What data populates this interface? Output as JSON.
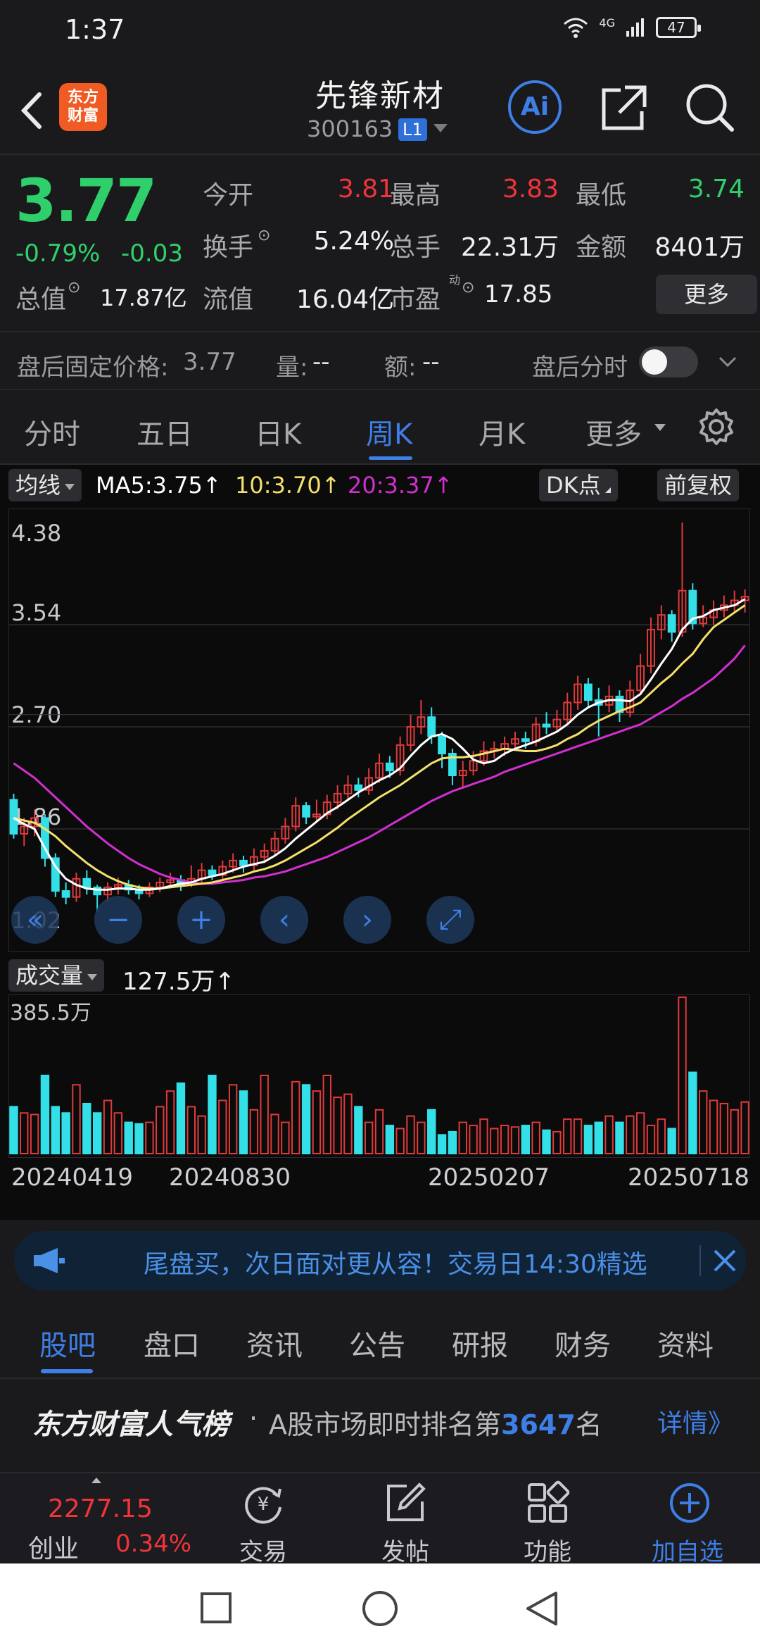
{
  "status_bar": {
    "time": "1:37",
    "network": "4G",
    "battery": "47"
  },
  "header": {
    "logo_text_line1": "东方",
    "logo_text_line2": "财富",
    "stock_name": "先锋新材",
    "stock_code": "300163",
    "level_badge": "L1"
  },
  "quote": {
    "price": "3.77",
    "change_pct": "-0.79%",
    "change_abs": "-0.03",
    "rows": [
      {
        "label": "今开",
        "value": "3.81",
        "color": "#f0343a"
      },
      {
        "label": "最高",
        "value": "3.83",
        "color": "#f0343a"
      },
      {
        "label": "最低",
        "value": "3.74",
        "color": "#2fd06b"
      },
      {
        "label": "换手",
        "value": "5.24%",
        "color": "#f0f0f0"
      },
      {
        "label": "总手",
        "value": "22.31万",
        "color": "#f0f0f0"
      },
      {
        "label": "金额",
        "value": "8401万",
        "color": "#f0f0f0"
      },
      {
        "label": "总值",
        "value": "17.87亿",
        "color": "#f0f0f0"
      },
      {
        "label": "流值",
        "value": "16.04亿",
        "color": "#f0f0f0"
      },
      {
        "label": "市盈",
        "value": "17.85",
        "color": "#f0f0f0"
      }
    ],
    "pe_superscript": "动",
    "more_label": "更多"
  },
  "after_hours": {
    "fixed_price_label": "盘后固定价格:",
    "fixed_price_value": "3.77",
    "volume_label": "量:",
    "volume_value": "--",
    "amount_label": "额:",
    "amount_value": "--",
    "toggle_label": "盘后分时"
  },
  "period_tabs": [
    "分时",
    "五日",
    "日K",
    "周K",
    "月K",
    "更多"
  ],
  "active_period": "周K",
  "ma_bar": {
    "btn_label": "均线",
    "ma5": "MA5:3.75↑",
    "ma10": "10:3.70↑",
    "ma20": "20:3.37↑",
    "dk_label": "DK点",
    "fq_label": "前复权",
    "ma5_color": "#ffffff",
    "ma10_color": "#f4e06a",
    "ma20_color": "#d22fd0"
  },
  "chart_data": {
    "type": "candlestick",
    "y_ticks": [
      "4.38",
      "3.54",
      "2.70",
      "1.86",
      "1.02"
    ],
    "ylim": [
      1.02,
      4.38
    ],
    "up_color": "#e03a3a",
    "down_color": "#33e0e8",
    "candles": [
      [
        2.1,
        1.82,
        2.15,
        1.78
      ],
      [
        1.82,
        1.88,
        1.95,
        1.72
      ],
      [
        1.88,
        1.95,
        2.02,
        1.8
      ],
      [
        1.95,
        1.62,
        1.98,
        1.55
      ],
      [
        1.62,
        1.35,
        1.66,
        1.3
      ],
      [
        1.35,
        1.3,
        1.42,
        1.24
      ],
      [
        1.3,
        1.45,
        1.5,
        1.26
      ],
      [
        1.45,
        1.38,
        1.52,
        1.32
      ],
      [
        1.38,
        1.32,
        1.4,
        1.18
      ],
      [
        1.32,
        1.38,
        1.42,
        1.26
      ],
      [
        1.38,
        1.4,
        1.46,
        1.32
      ],
      [
        1.4,
        1.36,
        1.44,
        1.32
      ],
      [
        1.36,
        1.33,
        1.4,
        1.28
      ],
      [
        1.33,
        1.38,
        1.42,
        1.3
      ],
      [
        1.38,
        1.42,
        1.46,
        1.34
      ],
      [
        1.42,
        1.44,
        1.5,
        1.38
      ],
      [
        1.44,
        1.4,
        1.48,
        1.35
      ],
      [
        1.4,
        1.45,
        1.56,
        1.38
      ],
      [
        1.45,
        1.52,
        1.58,
        1.42
      ],
      [
        1.52,
        1.48,
        1.56,
        1.44
      ],
      [
        1.48,
        1.55,
        1.6,
        1.44
      ],
      [
        1.55,
        1.6,
        1.66,
        1.5
      ],
      [
        1.6,
        1.56,
        1.64,
        1.5
      ],
      [
        1.56,
        1.63,
        1.7,
        1.52
      ],
      [
        1.63,
        1.68,
        1.74,
        1.58
      ],
      [
        1.68,
        1.78,
        1.84,
        1.64
      ],
      [
        1.78,
        1.88,
        1.95,
        1.74
      ],
      [
        1.88,
        2.05,
        2.12,
        1.84
      ],
      [
        2.05,
        1.96,
        2.08,
        1.9
      ],
      [
        1.96,
        1.98,
        2.1,
        1.92
      ],
      [
        1.98,
        2.08,
        2.14,
        1.94
      ],
      [
        2.08,
        2.15,
        2.22,
        2.02
      ],
      [
        2.15,
        2.22,
        2.3,
        2.1
      ],
      [
        2.22,
        2.18,
        2.28,
        2.12
      ],
      [
        2.18,
        2.28,
        2.36,
        2.14
      ],
      [
        2.28,
        2.4,
        2.48,
        2.24
      ],
      [
        2.4,
        2.34,
        2.46,
        2.28
      ],
      [
        2.34,
        2.55,
        2.62,
        2.3
      ],
      [
        2.55,
        2.7,
        2.8,
        2.5
      ],
      [
        2.7,
        2.78,
        2.92,
        2.64
      ],
      [
        2.78,
        2.62,
        2.86,
        2.56
      ],
      [
        2.62,
        2.48,
        2.66,
        2.36
      ],
      [
        2.48,
        2.3,
        2.52,
        2.22
      ],
      [
        2.3,
        2.34,
        2.42,
        2.2
      ],
      [
        2.34,
        2.42,
        2.5,
        2.3
      ],
      [
        2.42,
        2.5,
        2.58,
        2.38
      ],
      [
        2.5,
        2.52,
        2.58,
        2.44
      ],
      [
        2.52,
        2.56,
        2.62,
        2.46
      ],
      [
        2.56,
        2.6,
        2.66,
        2.5
      ],
      [
        2.6,
        2.58,
        2.66,
        2.52
      ],
      [
        2.58,
        2.72,
        2.78,
        2.54
      ],
      [
        2.72,
        2.7,
        2.82,
        2.64
      ],
      [
        2.7,
        2.76,
        2.84,
        2.66
      ],
      [
        2.76,
        2.9,
        2.98,
        2.72
      ],
      [
        2.9,
        3.05,
        3.12,
        2.84
      ],
      [
        3.05,
        2.92,
        3.1,
        2.86
      ],
      [
        2.92,
        2.88,
        3.02,
        2.62
      ],
      [
        2.88,
        2.95,
        3.04,
        2.82
      ],
      [
        2.95,
        2.82,
        3.0,
        2.74
      ],
      [
        2.82,
        3.0,
        3.08,
        2.78
      ],
      [
        3.0,
        3.2,
        3.3,
        2.96
      ],
      [
        3.2,
        3.5,
        3.6,
        3.14
      ],
      [
        3.5,
        3.62,
        3.7,
        3.42
      ],
      [
        3.62,
        3.48,
        3.66,
        3.4
      ],
      [
        3.48,
        3.82,
        4.38,
        3.44
      ],
      [
        3.82,
        3.55,
        3.88,
        3.5
      ],
      [
        3.55,
        3.6,
        3.7,
        3.52
      ],
      [
        3.6,
        3.66,
        3.74,
        3.54
      ],
      [
        3.66,
        3.7,
        3.78,
        3.6
      ],
      [
        3.7,
        3.74,
        3.82,
        3.64
      ],
      [
        3.74,
        3.77,
        3.83,
        3.64
      ]
    ],
    "ma5": [
      1.95,
      1.9,
      1.86,
      1.7,
      1.55,
      1.45,
      1.4,
      1.37,
      1.36,
      1.36,
      1.37,
      1.37,
      1.36,
      1.36,
      1.37,
      1.39,
      1.41,
      1.42,
      1.45,
      1.47,
      1.49,
      1.52,
      1.55,
      1.57,
      1.59,
      1.64,
      1.7,
      1.78,
      1.85,
      1.92,
      1.99,
      2.04,
      2.1,
      2.16,
      2.21,
      2.26,
      2.3,
      2.36,
      2.46,
      2.55,
      2.62,
      2.64,
      2.6,
      2.52,
      2.43,
      2.4,
      2.42,
      2.48,
      2.52,
      2.55,
      2.58,
      2.62,
      2.66,
      2.72,
      2.8,
      2.86,
      2.9,
      2.92,
      2.92,
      2.91,
      2.97,
      3.09,
      3.22,
      3.34,
      3.5,
      3.59,
      3.61,
      3.66,
      3.68,
      3.7,
      3.75
    ],
    "ma10": [
      1.95,
      1.93,
      1.91,
      1.86,
      1.8,
      1.72,
      1.65,
      1.58,
      1.52,
      1.47,
      1.43,
      1.4,
      1.38,
      1.37,
      1.37,
      1.38,
      1.39,
      1.4,
      1.41,
      1.42,
      1.44,
      1.46,
      1.48,
      1.51,
      1.53,
      1.56,
      1.6,
      1.65,
      1.7,
      1.75,
      1.81,
      1.87,
      1.94,
      2.0,
      2.06,
      2.12,
      2.17,
      2.22,
      2.28,
      2.34,
      2.4,
      2.44,
      2.45,
      2.45,
      2.46,
      2.48,
      2.5,
      2.52,
      2.51,
      2.5,
      2.5,
      2.52,
      2.55,
      2.6,
      2.64,
      2.7,
      2.75,
      2.79,
      2.83,
      2.86,
      2.9,
      2.98,
      3.06,
      3.13,
      3.22,
      3.3,
      3.42,
      3.52,
      3.58,
      3.64,
      3.7
    ],
    "ma20": [
      2.4,
      2.34,
      2.28,
      2.2,
      2.12,
      2.04,
      1.96,
      1.88,
      1.81,
      1.74,
      1.68,
      1.62,
      1.57,
      1.53,
      1.49,
      1.46,
      1.44,
      1.42,
      1.41,
      1.41,
      1.42,
      1.43,
      1.44,
      1.46,
      1.47,
      1.49,
      1.51,
      1.54,
      1.57,
      1.6,
      1.63,
      1.67,
      1.71,
      1.75,
      1.79,
      1.84,
      1.89,
      1.94,
      1.99,
      2.04,
      2.09,
      2.13,
      2.17,
      2.2,
      2.23,
      2.26,
      2.29,
      2.33,
      2.36,
      2.39,
      2.42,
      2.45,
      2.48,
      2.51,
      2.54,
      2.57,
      2.6,
      2.63,
      2.66,
      2.69,
      2.72,
      2.77,
      2.82,
      2.87,
      2.93,
      2.98,
      3.04,
      3.1,
      3.18,
      3.26,
      3.37
    ],
    "volume_label": "成交量",
    "volume_value": "127.5万↑",
    "volume_max_label": "385.5万",
    "volumes": [
      0.3,
      0.26,
      0.25,
      0.5,
      0.3,
      0.26,
      0.44,
      0.32,
      0.26,
      0.34,
      0.26,
      0.2,
      0.19,
      0.2,
      0.3,
      0.4,
      0.45,
      0.3,
      0.24,
      0.5,
      0.34,
      0.44,
      0.4,
      0.28,
      0.5,
      0.25,
      0.2,
      0.46,
      0.44,
      0.4,
      0.5,
      0.36,
      0.38,
      0.3,
      0.2,
      0.28,
      0.18,
      0.16,
      0.24,
      0.2,
      0.28,
      0.12,
      0.14,
      0.2,
      0.18,
      0.22,
      0.16,
      0.18,
      0.17,
      0.18,
      0.2,
      0.15,
      0.14,
      0.22,
      0.22,
      0.18,
      0.2,
      0.24,
      0.2,
      0.24,
      0.26,
      0.18,
      0.22,
      0.16,
      1.0,
      0.52,
      0.4,
      0.34,
      0.32,
      0.28,
      0.33
    ],
    "x_ticks": [
      "20240419",
      "20240830",
      "20250207",
      "20250718"
    ],
    "nav_controls": [
      "zoom-out",
      "minus",
      "plus",
      "prev",
      "next",
      "fullscreen"
    ]
  },
  "banner": {
    "text": "尾盘买，次日面对更从容！交易日14:30精选"
  },
  "info_tabs": [
    "股吧",
    "盘口",
    "资讯",
    "公告",
    "研报",
    "财务",
    "资料"
  ],
  "active_info_tab": "股吧",
  "ranking": {
    "brand": "东方财富人气榜",
    "dot": "·",
    "prefix": "A股市场即时排名第",
    "rank": "3647",
    "suffix": "名",
    "detail": "详情》"
  },
  "bottom_nav": {
    "index_value": "2277.15",
    "index_name": "创业",
    "index_change": "0.34%",
    "items": [
      {
        "label": "交易"
      },
      {
        "label": "发帖"
      },
      {
        "label": "功能"
      },
      {
        "label": "加自选"
      }
    ]
  }
}
